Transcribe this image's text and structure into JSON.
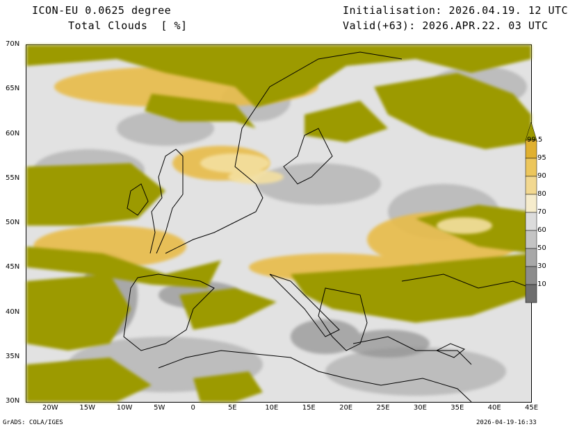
{
  "header": {
    "model": "ICON-EU 0.0625 degree",
    "variable": "Total Clouds  [ %]",
    "init": "Initialisation: 2026.04.19. 12 UTC",
    "valid": "Valid(+63): 2026.APR.22. 03 UTC"
  },
  "axes": {
    "lat_labels": [
      "70N",
      "65N",
      "60N",
      "55N",
      "50N",
      "45N",
      "40N",
      "35N",
      "30N"
    ],
    "lon_labels": [
      "20W",
      "15W",
      "10W",
      "5W",
      "0",
      "5E",
      "10E",
      "15E",
      "20E",
      "25E",
      "30E",
      "35E",
      "40E",
      "45E"
    ],
    "lat_range": [
      30,
      70
    ],
    "lon_range": [
      -23,
      45
    ]
  },
  "colorbar": {
    "levels": [
      "99.5",
      "95",
      "90",
      "80",
      "70",
      "60",
      "50",
      "30",
      "10"
    ],
    "colors": [
      "#9c9a00",
      "#e0b030",
      "#ecc65c",
      "#f2d890",
      "#f6eccc",
      "#dcdcdc",
      "#c4c4c4",
      "#a8a8a8",
      "#8c8c8c",
      "#6e6e6e"
    ]
  },
  "footer": {
    "left": "GrADS: COLA/IGES",
    "right": "2026-04-19-16:33"
  }
}
